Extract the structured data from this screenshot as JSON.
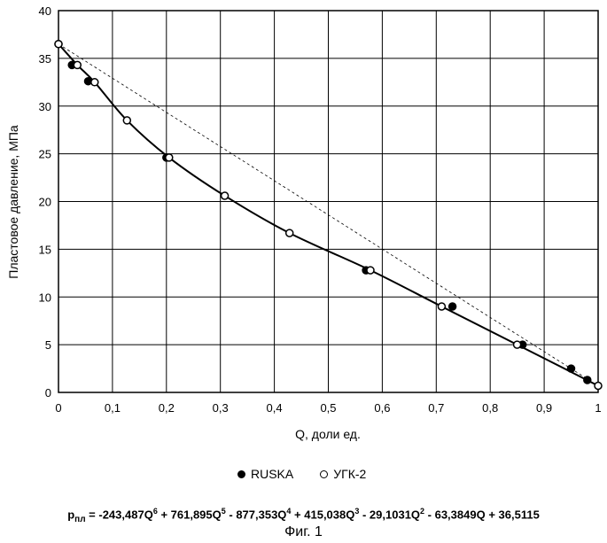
{
  "chart_data": {
    "type": "scatter",
    "xlabel": "Q, доли ед.",
    "ylabel": "Пластовое давление, МПа",
    "xlim": [
      0,
      1
    ],
    "ylim": [
      0,
      40
    ],
    "xticks": [
      "0",
      "0,1",
      "0,2",
      "0,3",
      "0,4",
      "0,5",
      "0,6",
      "0,7",
      "0,8",
      "0,9",
      "1"
    ],
    "yticks": [
      "0",
      "5",
      "10",
      "15",
      "20",
      "25",
      "30",
      "35",
      "40"
    ],
    "grid": true,
    "series": [
      {
        "name": "RUSKA",
        "marker": "filled-circle",
        "points": [
          [
            0,
            36.5
          ],
          [
            0.025,
            34.3
          ],
          [
            0.055,
            32.6
          ],
          [
            0.2,
            24.6
          ],
          [
            0.57,
            12.8
          ],
          [
            0.73,
            9.0
          ],
          [
            0.86,
            5.0
          ],
          [
            0.95,
            2.5
          ],
          [
            0.98,
            1.3
          ]
        ]
      },
      {
        "name": "УГК-2",
        "marker": "open-circle",
        "points": [
          [
            0,
            36.5
          ],
          [
            0.035,
            34.3
          ],
          [
            0.067,
            32.5
          ],
          [
            0.127,
            28.5
          ],
          [
            0.205,
            24.6
          ],
          [
            0.308,
            20.6
          ],
          [
            0.428,
            16.7
          ],
          [
            0.578,
            12.8
          ],
          [
            0.71,
            9.0
          ],
          [
            0.85,
            5.0
          ],
          [
            1.0,
            0.7
          ]
        ]
      }
    ],
    "fit": {
      "description": "polynomial trend",
      "coefficients_desc": [
        -243.487,
        761.895,
        -877.353,
        415.038,
        -29.1031,
        -63.3849,
        36.5115
      ]
    },
    "reference_line": {
      "style": "dashed",
      "points": [
        [
          0,
          36.5
        ],
        [
          1.0,
          0.7
        ]
      ]
    }
  },
  "legend": {
    "ruska": "RUSKA",
    "ugk": "УГК-2"
  },
  "formula": "pпл = -243,487Q6 + 761,895Q5 - 877,353Q4 + 415,038Q3 - 29,1031Q2 - 63,3849Q + 36,5115",
  "figure_label": "Фиг. 1"
}
